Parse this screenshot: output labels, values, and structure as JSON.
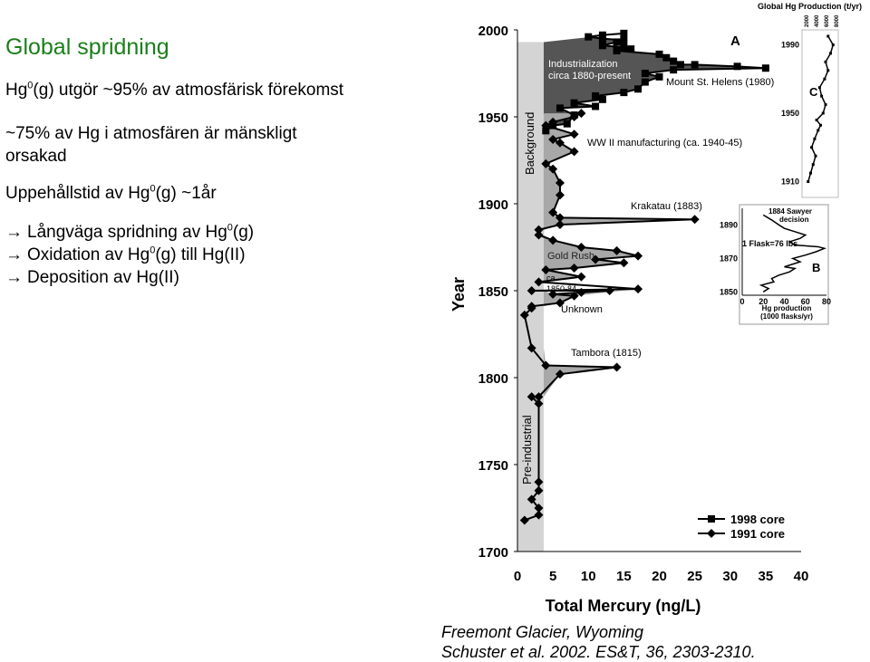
{
  "slide": {
    "title": "Global spridning",
    "lines": [
      {
        "pre": "Hg",
        "sup": "0",
        "post": "(g) utgör ~95% av atmosfärisk förekomst"
      },
      {
        "pre": "~75% av Hg i atmosfären är mänskligt",
        "sup": "",
        "post": ""
      },
      {
        "pre": "orsakad",
        "sup": "",
        "post": ""
      },
      {
        "pre": "Uppehållstid av Hg",
        "sup": "0",
        "post": "(g) ~1år"
      }
    ],
    "arrows": [
      {
        "pre": "Långväga spridning av Hg",
        "sup": "0",
        "post": "(g)"
      },
      {
        "pre": "Oxidation  av Hg",
        "sup": "0",
        "post": "(g) till Hg(II)"
      },
      {
        "pre": "Deposition av Hg(II)",
        "sup": "",
        "post": ""
      }
    ],
    "arrow_glyph": "→"
  },
  "reference": {
    "line1": "Freemont Glacier, Wyoming",
    "line2": "Schuster et al. 2002. ES&T, 36, 2303-2310."
  },
  "colors": {
    "title": "#1a7f1a",
    "background_band": "#d0d0d0",
    "industrial_fill": "#555555",
    "peak_fill": "#a8a8a8"
  },
  "chart_data": [
    {
      "type": "line",
      "xlabel": "Total Mercury (ng/L)",
      "ylabel": "Year",
      "xlim": [
        0,
        40
      ],
      "ylim": [
        1700,
        2000
      ],
      "x_ticks": [
        0,
        5,
        10,
        15,
        20,
        25,
        30,
        35,
        40
      ],
      "y_ticks": [
        1700,
        1750,
        1800,
        1850,
        1900,
        1950,
        2000
      ],
      "panel_label": "A",
      "annotations": [
        "Industrialization circa 1880-present",
        "Mount St. Helens (1980)",
        "WW II manufacturing (ca. 1940-45)",
        "Krakatau (1883)",
        "Gold Rush",
        "ca. 1850-84",
        "Unknown",
        "Tambora (1815)",
        "Background",
        "Pre-industrial"
      ],
      "series": [
        {
          "name": "1998 core",
          "marker": "square",
          "points": [
            [
              4,
              1942
            ],
            [
              5,
              1945
            ],
            [
              7,
              1946
            ],
            [
              8,
              1951
            ],
            [
              6,
              1955
            ],
            [
              11,
              1956
            ],
            [
              8,
              1958
            ],
            [
              12,
              1960
            ],
            [
              11,
              1962
            ],
            [
              15,
              1964
            ],
            [
              17,
              1966
            ],
            [
              18,
              1970
            ],
            [
              20,
              1973
            ],
            [
              18,
              1975
            ],
            [
              22,
              1977
            ],
            [
              25,
              1980
            ],
            [
              35,
              1978
            ],
            [
              31,
              1979
            ],
            [
              23,
              1980
            ],
            [
              22,
              1982
            ],
            [
              21,
              1984
            ],
            [
              20,
              1986
            ],
            [
              14,
              1988
            ],
            [
              16,
              1989
            ],
            [
              15,
              1990
            ],
            [
              12,
              1991
            ],
            [
              14,
              1993
            ],
            [
              15,
              1994
            ],
            [
              12,
              1995
            ],
            [
              10,
              1996
            ],
            [
              12,
              1997
            ],
            [
              15,
              1998
            ]
          ]
        },
        {
          "name": "1991 core",
          "marker": "diamond",
          "points": [
            [
              1,
              1718
            ],
            [
              3,
              1721
            ],
            [
              3,
              1725
            ],
            [
              2,
              1730
            ],
            [
              3,
              1735
            ],
            [
              3,
              1740
            ],
            [
              3,
              1785
            ],
            [
              2,
              1789
            ],
            [
              3,
              1789
            ],
            [
              6,
              1802
            ],
            [
              14,
              1806
            ],
            [
              4,
              1807
            ],
            [
              2,
              1817
            ],
            [
              1,
              1836
            ],
            [
              2,
              1840
            ],
            [
              2,
              1841
            ],
            [
              6,
              1843
            ],
            [
              8,
              1847
            ],
            [
              17,
              1851
            ],
            [
              13,
              1850
            ],
            [
              9,
              1849
            ],
            [
              5,
              1848
            ],
            [
              2,
              1850
            ],
            [
              3,
              1855
            ],
            [
              9,
              1858
            ],
            [
              4,
              1862
            ],
            [
              8,
              1863
            ],
            [
              15,
              1866
            ],
            [
              11,
              1868
            ],
            [
              17,
              1870
            ],
            [
              14,
              1873
            ],
            [
              9,
              1875
            ],
            [
              5,
              1879
            ],
            [
              3,
              1882
            ],
            [
              3,
              1885
            ],
            [
              6,
              1888
            ],
            [
              25,
              1891
            ],
            [
              6,
              1892
            ],
            [
              5,
              1895
            ],
            [
              6,
              1905
            ],
            [
              6,
              1912
            ],
            [
              5,
              1920
            ],
            [
              4,
              1923
            ],
            [
              8,
              1930
            ],
            [
              6,
              1935
            ],
            [
              5,
              1937
            ],
            [
              8,
              1940
            ],
            [
              4,
              1945
            ],
            [
              5,
              1947
            ],
            [
              8,
              1950
            ],
            [
              9,
              1952
            ]
          ]
        }
      ],
      "legend": [
        "1998 core",
        "1991 core"
      ],
      "legend_position": "bottom-right"
    },
    {
      "type": "line",
      "panel_label": "B",
      "xlabel": "Hg production (1000 flasks/yr)",
      "xlim": [
        0,
        80
      ],
      "ylim": [
        1848,
        1900
      ],
      "x_ticks": [
        0,
        20,
        40,
        60,
        80
      ],
      "y_ticks": [
        1850,
        1870,
        1890
      ],
      "annotations": [
        "1884 Sawyer decision",
        "1 Flask=76 lbs"
      ],
      "series": [
        {
          "values_x": [
            20,
            25,
            18,
            30,
            28,
            35,
            45,
            50,
            40,
            45,
            55,
            48,
            60,
            70,
            78,
            72,
            50,
            45,
            55,
            60,
            50,
            40,
            35,
            28,
            20
          ],
          "values_y": [
            1850,
            1852,
            1854,
            1856,
            1858,
            1860,
            1862,
            1864,
            1865,
            1866,
            1868,
            1870,
            1872,
            1874,
            1876,
            1877,
            1878,
            1880,
            1882,
            1884,
            1886,
            1888,
            1890,
            1893,
            1896
          ]
        }
      ]
    },
    {
      "type": "line",
      "panel_label": "C",
      "title": "Global Hg Production (t/yr)",
      "x_ticks": [
        2000,
        4000,
        6000,
        8000
      ],
      "y_ticks": [
        1910,
        1950,
        1990
      ],
      "series": [
        {
          "values_x": [
            2500,
            3000,
            3500,
            4000,
            3200,
            3800,
            4500,
            5000,
            4200,
            5500,
            6000,
            5200,
            4800,
            5800,
            6500,
            6000,
            7000,
            7500,
            6500
          ],
          "values_y": [
            1910,
            1915,
            1920,
            1925,
            1930,
            1935,
            1940,
            1943,
            1946,
            1950,
            1955,
            1960,
            1965,
            1970,
            1975,
            1980,
            1985,
            1990,
            1995
          ]
        }
      ]
    }
  ]
}
